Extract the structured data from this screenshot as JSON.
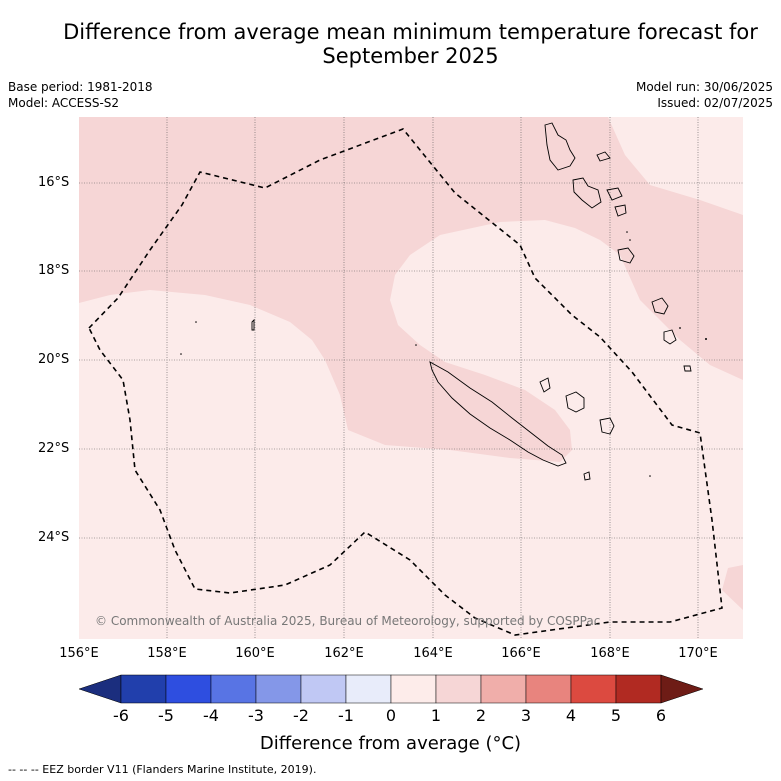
{
  "title_line1": "Difference from average mean minimum temperature forecast for",
  "title_line2": "September 2025",
  "base_period": "Base period: 1981-2018",
  "model": "Model: ACCESS-S2",
  "model_run": "Model run: 30/06/2025",
  "issued": "Issued: 02/07/2025",
  "lat_labels": [
    "16°S",
    "18°S",
    "20°S",
    "22°S",
    "24°S"
  ],
  "lon_labels": [
    "156°E",
    "158°E",
    "160°E",
    "162°E",
    "164°E",
    "166°E",
    "168°E",
    "170°E"
  ],
  "copyright": "© Commonwealth of Australia 2025, Bureau of Meteorology, supported by COSPPac",
  "colorbar": {
    "ticks": [
      "-6",
      "-5",
      "-4",
      "-3",
      "-2",
      "-1",
      "0",
      "1",
      "2",
      "3",
      "4",
      "5",
      "6"
    ],
    "colors": [
      "#1b2e7e",
      "#213fac",
      "#2e4ee0",
      "#5874e4",
      "#8497e8",
      "#c0c8f4",
      "#e8ecfa",
      "#fdecea",
      "#f6d6d6",
      "#f0aeaa",
      "#e8847e",
      "#dc4a40",
      "#b12a22",
      "#6e1c16"
    ],
    "label": "Difference from average (°C)"
  },
  "fill_colors": {
    "light": "#fcebea",
    "medium": "#f6d6d6"
  },
  "footer": "--  --  -- EEZ border V11 (Flanders Marine Institute, 2019)."
}
